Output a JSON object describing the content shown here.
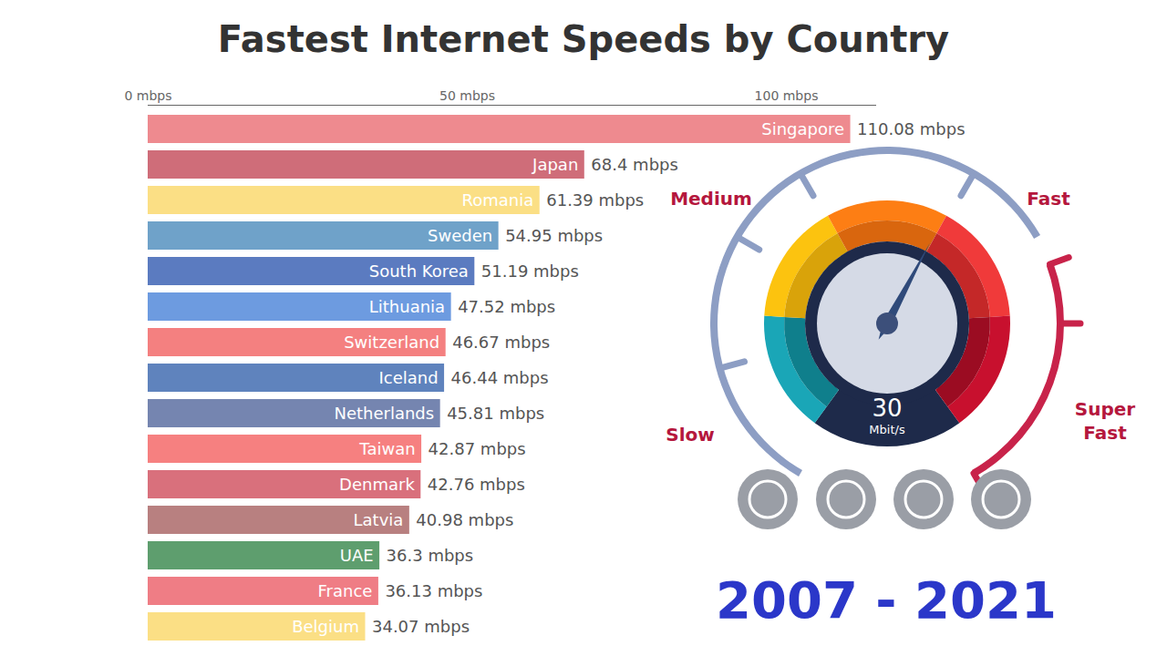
{
  "chart_data": {
    "type": "bar",
    "orientation": "horizontal",
    "title": "Fastest Internet Speeds by Country",
    "subtitle": "2007 - 2021",
    "categories": [
      "Singapore",
      "Japan",
      "Romania",
      "Sweden",
      "South Korea",
      "Lithuania",
      "Switzerland",
      "Iceland",
      "Netherlands",
      "Taiwan",
      "Denmark",
      "Latvia",
      "UAE",
      "France",
      "Belgium"
    ],
    "values": [
      110.08,
      68.4,
      61.39,
      54.95,
      51.19,
      47.52,
      46.67,
      46.44,
      45.81,
      42.87,
      42.76,
      40.98,
      36.3,
      36.13,
      34.07
    ],
    "value_labels": [
      "110.08 mbps",
      "68.4 mbps",
      "61.39 mbps",
      "54.95 mbps",
      "51.19 mbps",
      "47.52 mbps",
      "46.67 mbps",
      "46.44 mbps",
      "45.81 mbps",
      "42.87 mbps",
      "42.76 mbps",
      "40.98 mbps",
      "36.3 mbps",
      "36.13 mbps",
      "34.07 mbps"
    ],
    "colors": [
      "#ee8a8f",
      "#cf6d79",
      "#fbdf85",
      "#6fa2c9",
      "#5b7bc0",
      "#6d9be0",
      "#f48080",
      "#5f83bd",
      "#7585b0",
      "#f68080",
      "#d9707c",
      "#b88080",
      "#5e9e6e",
      "#ef7d85",
      "#fbdf85"
    ],
    "xlim": [
      0,
      114
    ],
    "xticks": [
      {
        "value": 0,
        "label": "0 mbps"
      },
      {
        "value": 50,
        "label": "50 mbps"
      },
      {
        "value": 100,
        "label": "100 mbps"
      }
    ],
    "data_labels": true,
    "tick_labels": "x",
    "grid": false,
    "gauge": {
      "value": 30,
      "unit": "Mbit/s",
      "labels": [
        "Slow",
        "Medium",
        "Fast",
        "Super Fast"
      ]
    }
  }
}
